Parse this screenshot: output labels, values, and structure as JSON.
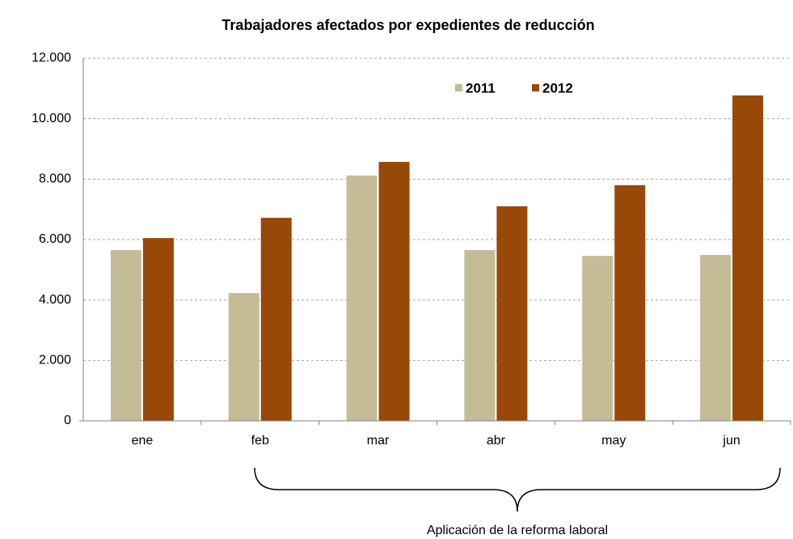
{
  "chart_data": {
    "type": "bar",
    "title": "Trabajadores afectados por expedientes de reducción",
    "categories": [
      "ene",
      "feb",
      "mar",
      "abr",
      "may",
      "jun"
    ],
    "series": [
      {
        "name": "2011",
        "color": "#c4bc96",
        "values": [
          5650,
          4230,
          8120,
          5650,
          5460,
          5490
        ]
      },
      {
        "name": "2012",
        "color": "#984807",
        "values": [
          6050,
          6720,
          8570,
          7100,
          7800,
          10770
        ]
      }
    ],
    "ylim": [
      0,
      12000
    ],
    "yticks": [
      0,
      {
        "value": 2000,
        "label": "2.000"
      },
      {
        "value": 4000,
        "label": "4.000"
      },
      {
        "value": 6000,
        "label": "6.000"
      },
      {
        "value": 8000,
        "label": "8.000"
      },
      {
        "value": 10000,
        "label": "10.000"
      },
      {
        "value": 12000,
        "label": "12.000"
      }
    ],
    "grid": true,
    "legend": "top",
    "annotation": "Aplicación de la reforma laboral"
  }
}
